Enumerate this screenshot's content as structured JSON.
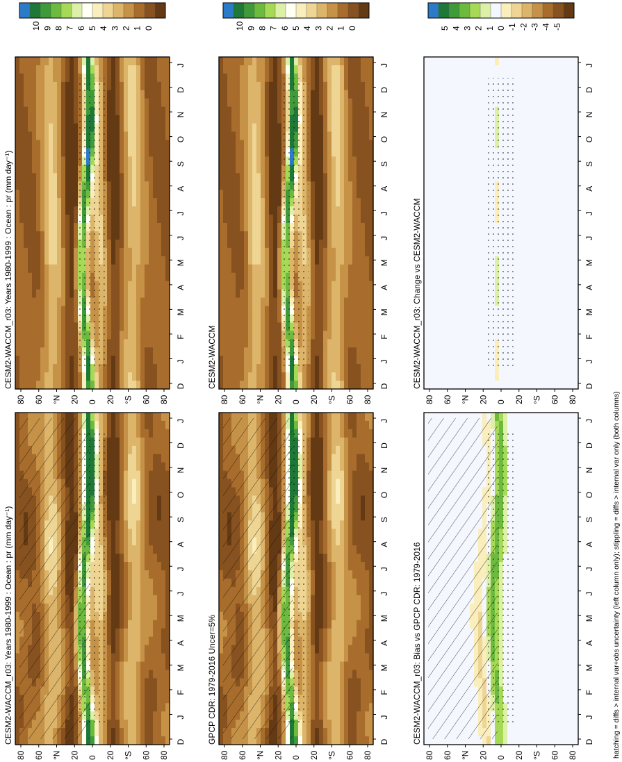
{
  "figure": {
    "footer": "hatching = diffs > internal var+obs uncertainty (left column only); stippling = diffs > internal var only (both columns)"
  },
  "chart_data": [
    {
      "type": "heatmap",
      "title": "CESM2-WACCM_r03: Years 1980-1999 : Ocean : pr (mm day⁻¹)",
      "x_ticks": [
        "D",
        "J",
        "F",
        "M",
        "A",
        "M",
        "J",
        "J",
        "A",
        "S",
        "O",
        "N",
        "D",
        "J"
      ],
      "y_ticks": [
        "80",
        "60",
        "°N",
        "20",
        "0",
        "20",
        "°S",
        "60",
        "80"
      ],
      "colorbar": [
        "10",
        "9",
        "8",
        "7",
        "6",
        "5",
        "4",
        "3",
        "2",
        "1",
        "0"
      ],
      "scheme": "precip",
      "hatching": true
    },
    {
      "type": "heatmap",
      "title": "CESM2-WACCM_r03: Years 1980-1999 : Ocean : pr (mm day⁻¹)",
      "x_ticks": [
        "D",
        "J",
        "F",
        "M",
        "A",
        "M",
        "J",
        "J",
        "A",
        "S",
        "O",
        "N",
        "D",
        "J"
      ],
      "y_ticks": [
        "80",
        "60",
        "°N",
        "20",
        "0",
        "20",
        "°S",
        "60",
        "80"
      ],
      "colorbar": [
        "10",
        "9",
        "8",
        "7",
        "6",
        "5",
        "4",
        "3",
        "2",
        "1",
        "0"
      ],
      "scheme": "precip",
      "hatching": false
    },
    {
      "type": "heatmap",
      "title": "GPCP CDR: 1979-2016 Uncer=5%",
      "x_ticks": [
        "D",
        "J",
        "F",
        "M",
        "A",
        "M",
        "J",
        "J",
        "A",
        "S",
        "O",
        "N",
        "D",
        "J"
      ],
      "y_ticks": [
        "80",
        "60",
        "°N",
        "20",
        "0",
        "20",
        "°S",
        "60",
        "80"
      ],
      "colorbar": [
        "10",
        "9",
        "8",
        "7",
        "6",
        "5",
        "4",
        "3",
        "2",
        "1",
        "0"
      ],
      "scheme": "precip",
      "hatching": true
    },
    {
      "type": "heatmap",
      "title": "CESM2-WACCM",
      "x_ticks": [
        "D",
        "J",
        "F",
        "M",
        "A",
        "M",
        "J",
        "J",
        "A",
        "S",
        "O",
        "N",
        "D",
        "J"
      ],
      "y_ticks": [
        "80",
        "60",
        "°N",
        "20",
        "0",
        "20",
        "°S",
        "60",
        "80"
      ],
      "colorbar": [
        "10",
        "9",
        "8",
        "7",
        "6",
        "5",
        "4",
        "3",
        "2",
        "1",
        "0"
      ],
      "scheme": "precip",
      "hatching": false
    },
    {
      "type": "heatmap",
      "title": "CESM2-WACCM_r03: Bias vs GPCP CDR: 1979-2016",
      "x_ticks": [
        "D",
        "J",
        "F",
        "M",
        "A",
        "M",
        "J",
        "J",
        "A",
        "S",
        "O",
        "N",
        "D",
        "J"
      ],
      "y_ticks": [
        "80",
        "60",
        "°N",
        "20",
        "0",
        "20",
        "°S",
        "60",
        "80"
      ],
      "colorbar": [
        "5",
        "4",
        "3",
        "2",
        "1",
        "0",
        "-1",
        "-2",
        "-3",
        "-4",
        "-5"
      ],
      "scheme": "diff",
      "hatching": true
    },
    {
      "type": "heatmap",
      "title": "CESM2-WACCM_r03: Change vs CESM2-WACCM",
      "x_ticks": [
        "D",
        "J",
        "F",
        "M",
        "A",
        "M",
        "J",
        "J",
        "A",
        "S",
        "O",
        "N",
        "D",
        "J"
      ],
      "y_ticks": [
        "80",
        "60",
        "°N",
        "20",
        "0",
        "20",
        "°S",
        "60",
        "80"
      ],
      "colorbar": [
        "5",
        "4",
        "3",
        "2",
        "1",
        "0",
        "-1",
        "-2",
        "-3",
        "-4",
        "-5"
      ],
      "scheme": "change",
      "hatching": false
    }
  ],
  "palettes": {
    "precip": [
      "#2b7bc8",
      "#1e7838",
      "#3f9b3a",
      "#6dbb3e",
      "#a6d956",
      "#ddf0a8",
      "#fffff4",
      "#f9eebc",
      "#eed594",
      "#dcb46a",
      "#c59247",
      "#a86d2c",
      "#87521f",
      "#643a14"
    ],
    "diff": [
      "#2b7bc8",
      "#1e7838",
      "#3f9b3a",
      "#6dbb3e",
      "#a6d956",
      "#ddf0a8",
      "#f5f7ff",
      "#f9eebc",
      "#eed594",
      "#dcb46a",
      "#c59247",
      "#a86d2c",
      "#87521f",
      "#643a14"
    ]
  }
}
